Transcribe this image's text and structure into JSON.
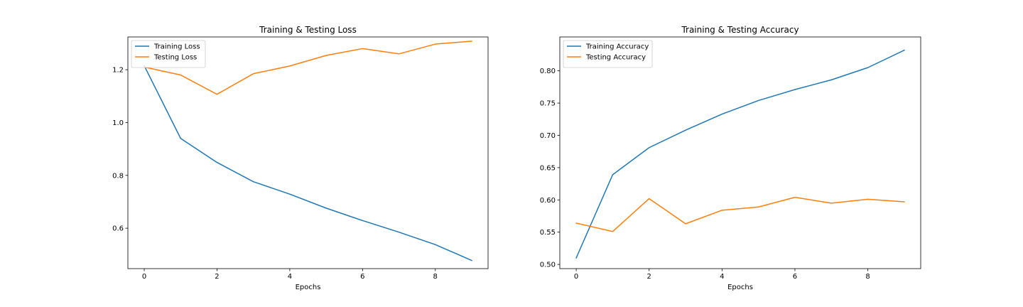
{
  "chart_data": [
    {
      "type": "line",
      "title": "Training & Testing Loss",
      "xlabel": "Epochs",
      "ylabel": "",
      "x": [
        0,
        1,
        2,
        3,
        4,
        5,
        6,
        7,
        8,
        9
      ],
      "xlim": [
        -0.45,
        9.45
      ],
      "ylim": [
        0.447,
        1.324
      ],
      "xticks": [
        0,
        2,
        4,
        6,
        8
      ],
      "yticks": [
        0.6,
        0.8,
        1.0,
        1.2
      ],
      "ytick_labels": [
        "0.6",
        "0.8",
        "1.0",
        "1.2"
      ],
      "grid": false,
      "legend": "upper left",
      "series": [
        {
          "name": "Training Loss",
          "color": "#1f77b4",
          "values": [
            1.215,
            0.94,
            0.849,
            0.776,
            0.729,
            0.676,
            0.629,
            0.585,
            0.538,
            0.478
          ]
        },
        {
          "name": "Testing Loss",
          "color": "#ff7f0e",
          "values": [
            1.21,
            1.18,
            1.107,
            1.185,
            1.214,
            1.254,
            1.28,
            1.26,
            1.297,
            1.308
          ]
        }
      ]
    },
    {
      "type": "line",
      "title": "Training & Testing Accuracy",
      "xlabel": "Epochs",
      "ylabel": "",
      "x": [
        0,
        1,
        2,
        3,
        4,
        5,
        6,
        7,
        8,
        9
      ],
      "xlim": [
        -0.45,
        9.45
      ],
      "ylim": [
        0.4935,
        0.8525
      ],
      "xticks": [
        0,
        2,
        4,
        6,
        8
      ],
      "yticks": [
        0.5,
        0.55,
        0.6,
        0.65,
        0.7,
        0.75,
        0.8
      ],
      "ytick_labels": [
        "0.50",
        "0.55",
        "0.60",
        "0.65",
        "0.70",
        "0.75",
        "0.80"
      ],
      "grid": false,
      "legend": "upper left",
      "series": [
        {
          "name": "Training Accuracy",
          "color": "#1f77b4",
          "values": [
            0.51,
            0.639,
            0.681,
            0.708,
            0.733,
            0.754,
            0.771,
            0.786,
            0.805,
            0.832
          ]
        },
        {
          "name": "Testing Accuracy",
          "color": "#ff7f0e",
          "values": [
            0.564,
            0.551,
            0.602,
            0.563,
            0.584,
            0.589,
            0.604,
            0.595,
            0.601,
            0.597
          ]
        }
      ]
    }
  ]
}
